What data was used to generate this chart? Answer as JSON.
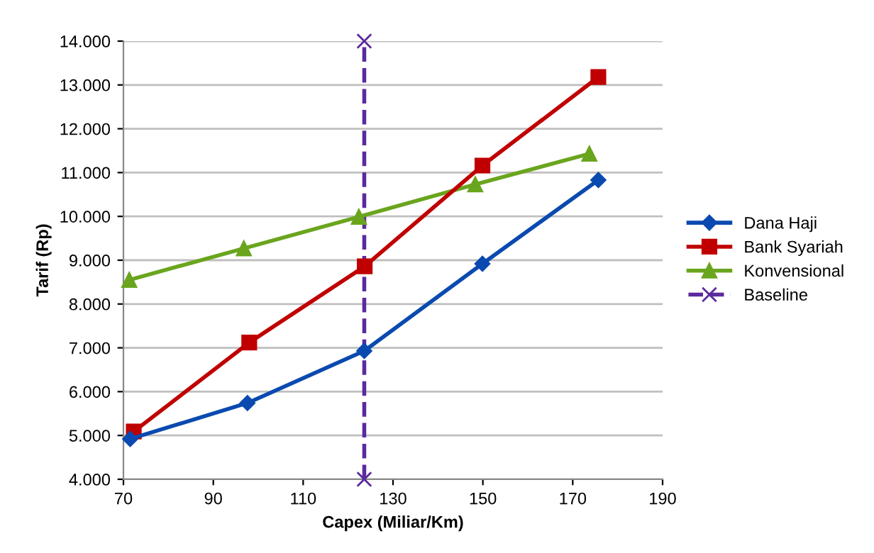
{
  "chart_data": {
    "type": "line",
    "xlabel": "Capex (Miliar/Km)",
    "ylabel": "Tarif (Rp)",
    "xlim": [
      70,
      190
    ],
    "xticks": [
      70,
      90,
      110,
      130,
      150,
      170,
      190
    ],
    "ylim": [
      4000,
      14000
    ],
    "yticks": [
      {
        "value": 4000,
        "label": "4.000"
      },
      {
        "value": 5000,
        "label": "5.000"
      },
      {
        "value": 6000,
        "label": "6.000"
      },
      {
        "value": 7000,
        "label": "7.000"
      },
      {
        "value": 8000,
        "label": "8.000"
      },
      {
        "value": 9000,
        "label": "9.000"
      },
      {
        "value": 10000,
        "label": "10.000"
      },
      {
        "value": 11000,
        "label": "11.000"
      },
      {
        "value": 12000,
        "label": "12.000"
      },
      {
        "value": 13000,
        "label": "13.000"
      },
      {
        "value": 14000,
        "label": "14.000"
      }
    ],
    "grid": "y",
    "legend": "right",
    "series": [
      {
        "name": "Dana Haji",
        "color": "#0a4ab0",
        "marker": "diamond",
        "x": [
          71.5,
          97.6,
          123.6,
          149.9,
          175.7
        ],
        "values": [
          4920,
          5740,
          6930,
          8920,
          10830
        ]
      },
      {
        "name": "Bank Syariah",
        "color": "#c00000",
        "marker": "square",
        "x": [
          72.3,
          98.0,
          123.7,
          149.9,
          175.7
        ],
        "values": [
          5090,
          7120,
          8860,
          11160,
          13180
        ]
      },
      {
        "name": "Konvensional",
        "color": "#6aa51e",
        "marker": "triangle",
        "x": [
          71.3,
          96.8,
          122.4,
          148.3,
          173.7
        ],
        "values": [
          8550,
          9270,
          9990,
          10730,
          11430
        ]
      },
      {
        "name": "Baseline",
        "color": "#5b2a9e",
        "marker": "cross",
        "line_style": "dashed",
        "x": [
          123.6,
          123.6
        ],
        "values": [
          4000,
          14000
        ]
      }
    ]
  }
}
